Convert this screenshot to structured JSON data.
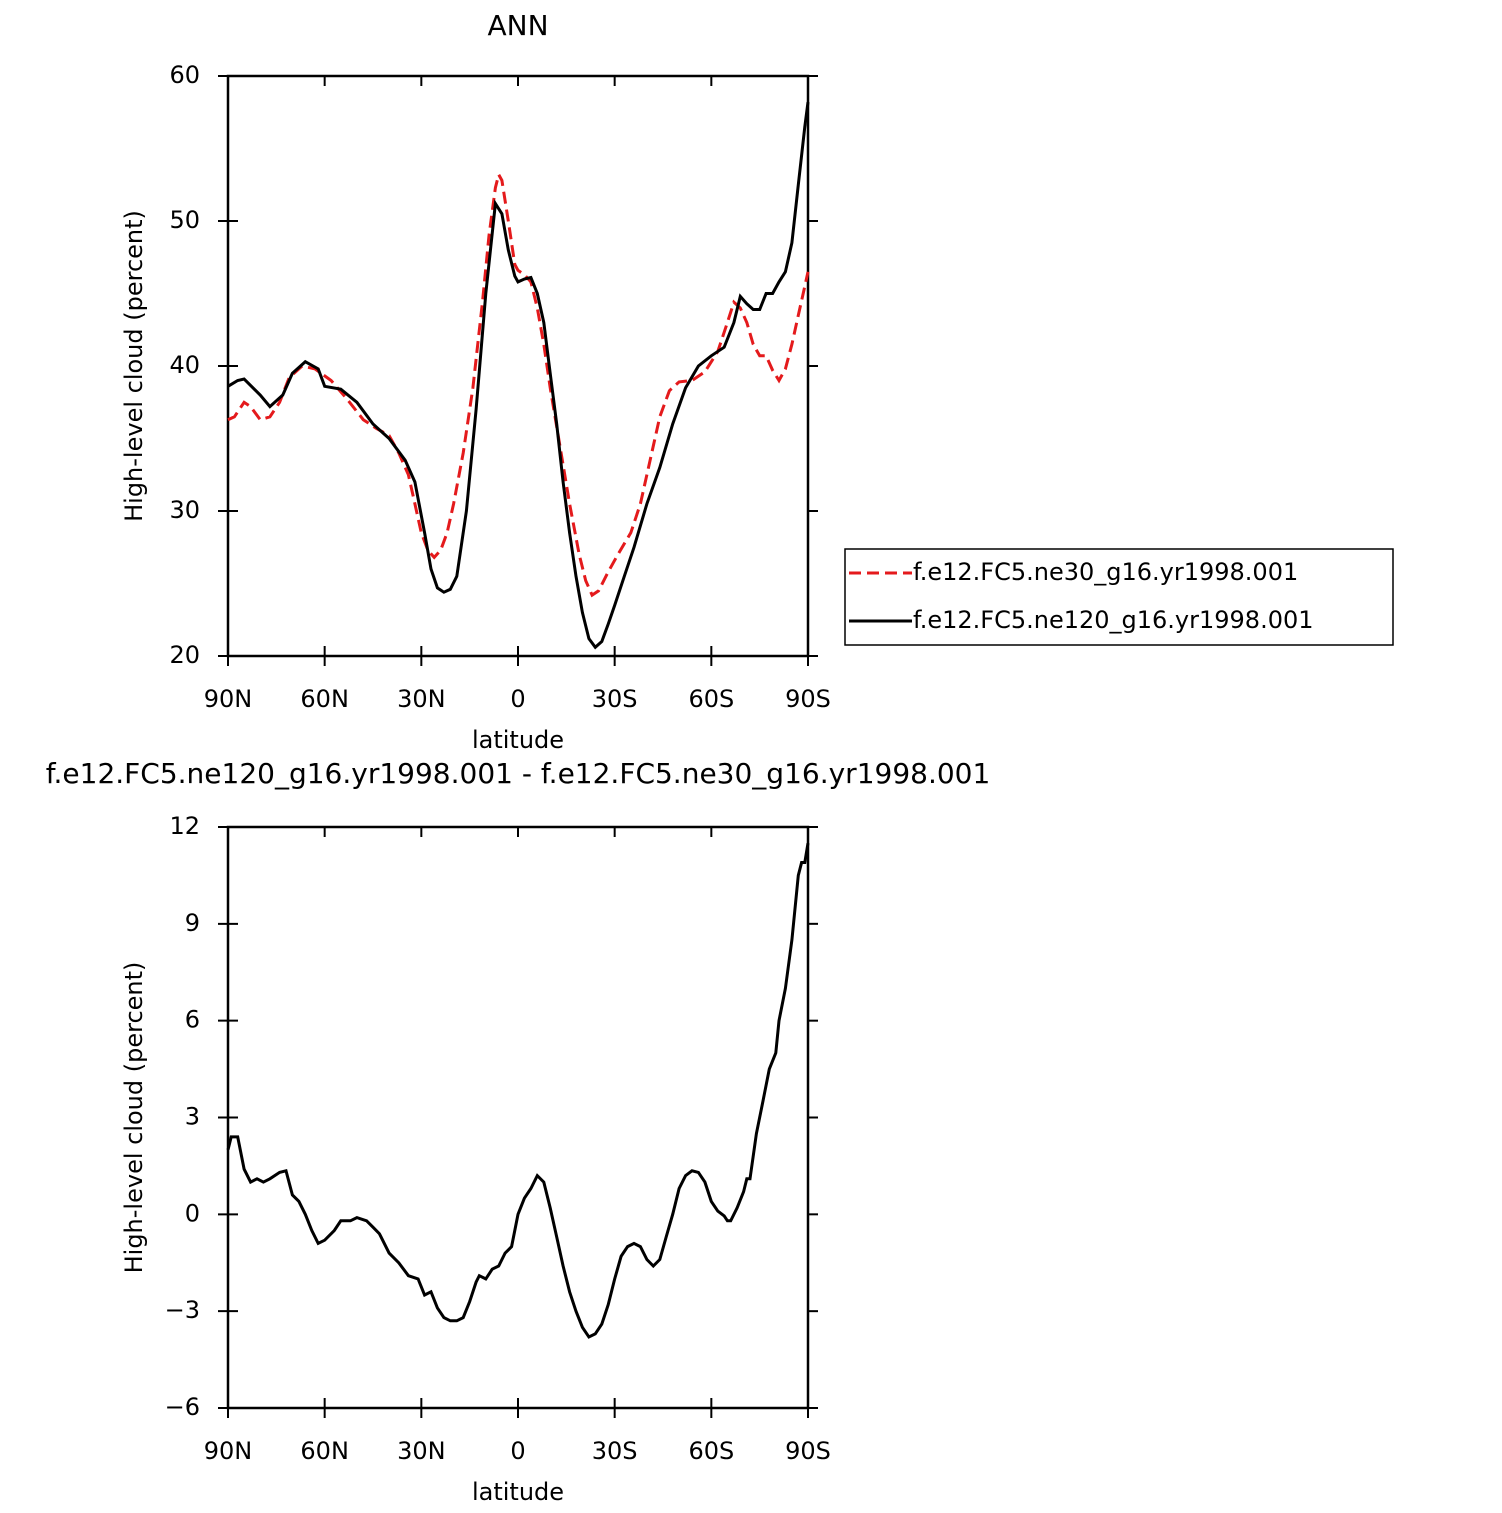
{
  "chart_data": [
    {
      "type": "line",
      "title": "ANN",
      "xlabel": "latitude",
      "ylabel": "High-level cloud (percent)",
      "xlim": [
        90,
        -90
      ],
      "xticks": [
        {
          "value": 90,
          "label": "90N"
        },
        {
          "value": 60,
          "label": "60N"
        },
        {
          "value": 30,
          "label": "30N"
        },
        0,
        {
          "value": -30,
          "label": "30S"
        },
        {
          "value": -60,
          "label": "60S"
        },
        {
          "value": -90,
          "label": "90S"
        }
      ],
      "ylim": [
        20,
        60
      ],
      "yticks": [
        20,
        30,
        40,
        50,
        60
      ],
      "legend": "right",
      "series": [
        {
          "name": "f.e12.FC5.ne30_g16.yr1998.001",
          "color": "#e41a1c",
          "line_style": "dashed",
          "x": [
            90,
            88,
            85,
            83,
            80,
            77,
            74,
            71,
            67,
            63,
            58,
            53,
            48,
            44,
            40,
            37,
            34,
            32,
            30,
            28,
            26,
            24,
            22,
            20,
            17,
            14,
            11,
            9,
            7,
            6,
            5,
            3,
            1,
            0,
            -2,
            -4,
            -6,
            -8,
            -10,
            -13,
            -16,
            -19,
            -21,
            -23,
            -25,
            -28,
            -31,
            -35,
            -38,
            -41,
            -44,
            -47,
            -50,
            -54,
            -58,
            -62,
            -65,
            -67,
            -69,
            -71,
            -73,
            -75,
            -77,
            -79,
            -81,
            -83,
            -85,
            -87,
            -89,
            -90
          ],
          "values": [
            36.3,
            36.5,
            37.5,
            37.2,
            36.3,
            36.5,
            37.5,
            39.2,
            40.0,
            39.8,
            39.0,
            37.7,
            36.3,
            35.7,
            35.2,
            34.0,
            32.5,
            30.5,
            28.5,
            27.3,
            26.8,
            27.3,
            28.5,
            30.5,
            34.0,
            38.5,
            44.5,
            49.0,
            52.3,
            53.2,
            52.8,
            50.0,
            47.0,
            46.6,
            46.3,
            45.8,
            44.0,
            41.5,
            38.5,
            34.5,
            30.5,
            27.0,
            25.2,
            24.2,
            24.5,
            25.8,
            27.0,
            28.5,
            30.5,
            33.5,
            36.5,
            38.3,
            38.9,
            39.0,
            39.6,
            41.0,
            43.0,
            44.4,
            44.0,
            43.0,
            41.5,
            40.7,
            40.7,
            39.7,
            39.0,
            39.8,
            41.5,
            43.5,
            45.5,
            46.5
          ]
        },
        {
          "name": "f.e12.FC5.ne120_g16.yr1998.001",
          "color": "#000000",
          "line_style": "solid",
          "x": [
            90,
            87,
            85,
            80,
            77,
            73,
            70,
            66,
            62,
            60,
            55,
            50,
            45,
            40,
            35,
            32,
            29,
            27,
            25,
            23,
            21,
            19,
            16,
            13,
            10,
            7,
            5,
            3,
            1,
            0,
            -2,
            -4,
            -6,
            -8,
            -10,
            -12,
            -14,
            -16,
            -18,
            -20,
            -22,
            -24,
            -26,
            -28,
            -30,
            -33,
            -36,
            -40,
            -44,
            -48,
            -52,
            -56,
            -60,
            -64,
            -67,
            -69,
            -71,
            -73,
            -75,
            -77,
            -79,
            -81,
            -83,
            -85,
            -87,
            -89,
            -90
          ],
          "values": [
            38.6,
            39.0,
            39.1,
            38.0,
            37.2,
            38.0,
            39.5,
            40.3,
            39.8,
            38.6,
            38.4,
            37.5,
            36.0,
            35.0,
            33.5,
            32.0,
            28.5,
            26.0,
            24.7,
            24.4,
            24.6,
            25.5,
            30.0,
            37.0,
            45.0,
            51.2,
            50.5,
            48.0,
            46.2,
            45.8,
            46.0,
            46.1,
            45.0,
            43.0,
            39.5,
            36.0,
            32.0,
            28.5,
            25.5,
            23.0,
            21.2,
            20.6,
            21.0,
            22.2,
            23.5,
            25.5,
            27.5,
            30.5,
            33.0,
            36.0,
            38.5,
            40.0,
            40.7,
            41.3,
            43.0,
            44.8,
            44.3,
            43.9,
            43.9,
            45.0,
            45.0,
            45.8,
            46.5,
            48.5,
            52.5,
            56.5,
            58.2
          ]
        }
      ]
    },
    {
      "type": "line",
      "title": "f.e12.FC5.ne120_g16.yr1998.001 - f.e12.FC5.ne30_g16.yr1998.001",
      "xlabel": "latitude",
      "ylabel": "High-level cloud (percent)",
      "xlim": [
        90,
        -90
      ],
      "xticks": [
        {
          "value": 90,
          "label": "90N"
        },
        {
          "value": 60,
          "label": "60N"
        },
        {
          "value": 30,
          "label": "30N"
        },
        0,
        {
          "value": -30,
          "label": "30S"
        },
        {
          "value": -60,
          "label": "60S"
        },
        {
          "value": -90,
          "label": "90S"
        }
      ],
      "ylim": [
        -6,
        12
      ],
      "yticks": [
        {
          "value": -6,
          "label": "−6"
        },
        {
          "value": -3,
          "label": "−3"
        },
        0,
        3,
        6,
        9,
        12
      ],
      "series": [
        {
          "color": "#000000",
          "line_style": "solid",
          "x": [
            90,
            89,
            87,
            85,
            83,
            81,
            79,
            77,
            74,
            72,
            70,
            68,
            66,
            64,
            62,
            60,
            57,
            55,
            52,
            50,
            47,
            45,
            43,
            40,
            37,
            34,
            31,
            29,
            27,
            25,
            23,
            21,
            19,
            17,
            15,
            13,
            12,
            10,
            8,
            6,
            4,
            2,
            0,
            -2,
            -4,
            -6,
            -8,
            -10,
            -12,
            -14,
            -16,
            -18,
            -20,
            -22,
            -24,
            -26,
            -28,
            -30,
            -32,
            -34,
            -36,
            -38,
            -40,
            -42,
            -44,
            -46,
            -48,
            -50,
            -52,
            -54,
            -56,
            -58,
            -60,
            -62,
            -64,
            -65,
            -66,
            -68,
            -70,
            -71,
            -72,
            -74,
            -76,
            -78,
            -80,
            -81,
            -83,
            -85,
            -87,
            -88,
            -89,
            -90
          ],
          "values": [
            2.0,
            2.4,
            2.4,
            1.4,
            1.0,
            1.1,
            1.0,
            1.1,
            1.3,
            1.35,
            0.6,
            0.4,
            0,
            -0.5,
            -0.9,
            -0.8,
            -0.5,
            -0.2,
            -0.2,
            -0.1,
            -0.2,
            -0.4,
            -0.6,
            -1.2,
            -1.5,
            -1.9,
            -2.0,
            -2.5,
            -2.4,
            -2.9,
            -3.2,
            -3.3,
            -3.3,
            -3.2,
            -2.7,
            -2.1,
            -1.9,
            -2.0,
            -1.7,
            -1.6,
            -1.2,
            -1.0,
            0.0,
            0.5,
            0.8,
            1.2,
            1.0,
            0.2,
            -0.7,
            -1.6,
            -2.4,
            -3.0,
            -3.5,
            -3.8,
            -3.7,
            -3.4,
            -2.8,
            -2.0,
            -1.3,
            -1.0,
            -0.9,
            -1.0,
            -1.4,
            -1.6,
            -1.4,
            -0.7,
            0.0,
            0.8,
            1.2,
            1.35,
            1.3,
            1.0,
            0.4,
            0.1,
            -0.05,
            -0.2,
            -0.2,
            0.2,
            0.7,
            1.1,
            1.1,
            2.5,
            3.5,
            4.5,
            5.0,
            6.0,
            7.0,
            8.5,
            10.5,
            10.9,
            10.9,
            11.5
          ]
        }
      ]
    }
  ]
}
